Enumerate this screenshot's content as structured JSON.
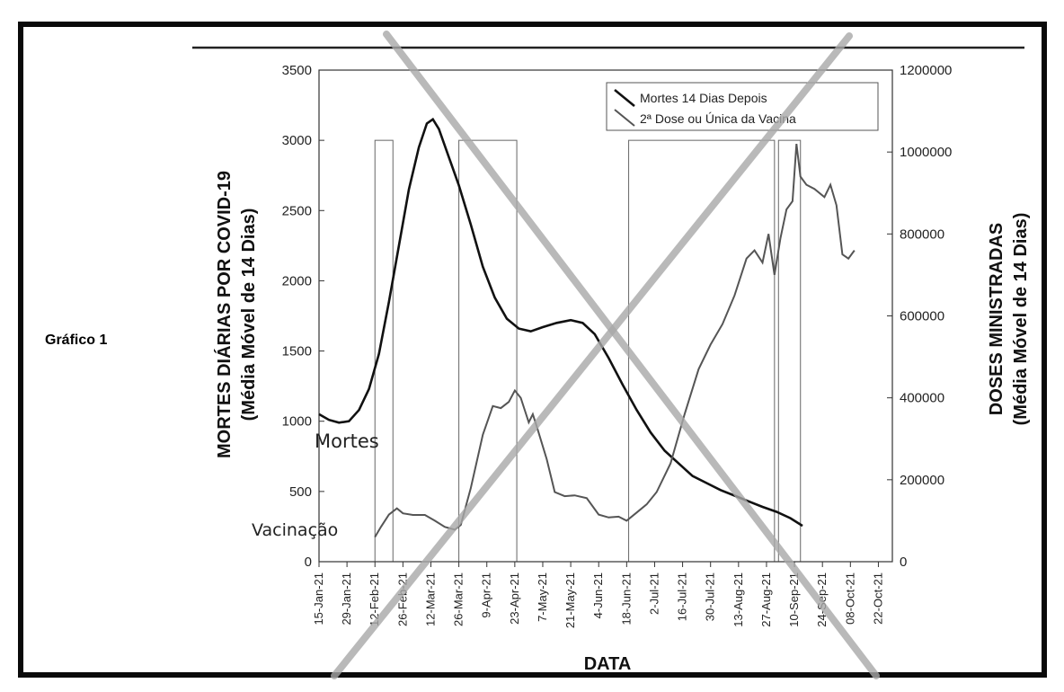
{
  "figure_label": "Gráfico 1",
  "colors": {
    "deaths_line": "#111111",
    "vaccine_line": "#555555",
    "cross": "#a8a8a8",
    "frame": "#0a0a0a"
  },
  "chart_data": {
    "type": "line",
    "title": "",
    "xlabel": "DATA",
    "ylabel": "MORTES DIÁRIAS POR COVID-19",
    "ylabel_sub": "(Média Móvel de 14 Dias)",
    "y2label": "DOSES MINISTRADAS",
    "y2label_sub": "(Média Móvel de 14 Dias)",
    "ylim": [
      0,
      3500
    ],
    "y2lim": [
      0,
      1200000
    ],
    "xlim": [
      "2021-01-15",
      "2021-10-29"
    ],
    "y_ticks": [
      "0",
      "500",
      "1000",
      "1500",
      "2000",
      "2500",
      "3000",
      "3500"
    ],
    "y2_ticks": [
      "0",
      "200000",
      "400000",
      "600000",
      "800000",
      "1000000",
      "1200000"
    ],
    "x_ticks": [
      {
        "label": "15-Jan-21",
        "date": "2021-01-15"
      },
      {
        "label": "29-Jan-21",
        "date": "2021-01-29"
      },
      {
        "label": "12-Feb-21",
        "date": "2021-02-12"
      },
      {
        "label": "26-Feb-21",
        "date": "2021-02-26"
      },
      {
        "label": "12-Mar-21",
        "date": "2021-03-12"
      },
      {
        "label": "26-Mar-21",
        "date": "2021-03-26"
      },
      {
        "label": "9-Apr-21",
        "date": "2021-04-09"
      },
      {
        "label": "23-Apr-21",
        "date": "2021-04-23"
      },
      {
        "label": "7-May-21",
        "date": "2021-05-07"
      },
      {
        "label": "21-May-21",
        "date": "2021-05-21"
      },
      {
        "label": "4-Jun-21",
        "date": "2021-06-04"
      },
      {
        "label": "18-Jun-21",
        "date": "2021-06-18"
      },
      {
        "label": "2-Jul-21",
        "date": "2021-07-02"
      },
      {
        "label": "16-Jul-21",
        "date": "2021-07-16"
      },
      {
        "label": "30-Jul-21",
        "date": "2021-07-30"
      },
      {
        "label": "13-Aug-21",
        "date": "2021-08-13"
      },
      {
        "label": "27-Aug-21",
        "date": "2021-08-27"
      },
      {
        "label": "10-Sep-21",
        "date": "2021-09-10"
      },
      {
        "label": "24-Sep-21",
        "date": "2021-09-24"
      },
      {
        "label": "08-Oct-21",
        "date": "2021-10-08"
      },
      {
        "label": "22-Oct-21",
        "date": "2021-10-22"
      }
    ],
    "legend": {
      "position": "top-right",
      "entries": [
        "Mortes 14 Dias Depois",
        "2ª Dose ou Única da Vacina"
      ]
    },
    "highlight_bands": [
      {
        "start": "2021-02-12",
        "end": "2021-02-21",
        "top": 3000
      },
      {
        "start": "2021-03-26",
        "end": "2021-04-24",
        "top": 3000
      },
      {
        "start": "2021-06-19",
        "end": "2021-08-31",
        "top": 3000
      },
      {
        "start": "2021-09-02",
        "end": "2021-09-13",
        "top": 3000
      }
    ],
    "series": [
      {
        "name": "Mortes 14 Dias Depois",
        "axis": "left",
        "points": [
          [
            "2021-01-15",
            1050
          ],
          [
            "2021-01-20",
            1010
          ],
          [
            "2021-01-25",
            990
          ],
          [
            "2021-01-30",
            1000
          ],
          [
            "2021-02-04",
            1080
          ],
          [
            "2021-02-09",
            1230
          ],
          [
            "2021-02-14",
            1480
          ],
          [
            "2021-02-19",
            1850
          ],
          [
            "2021-02-24",
            2250
          ],
          [
            "2021-03-01",
            2650
          ],
          [
            "2021-03-06",
            2950
          ],
          [
            "2021-03-10",
            3120
          ],
          [
            "2021-03-13",
            3150
          ],
          [
            "2021-03-16",
            3080
          ],
          [
            "2021-03-21",
            2880
          ],
          [
            "2021-03-26",
            2680
          ],
          [
            "2021-04-01",
            2400
          ],
          [
            "2021-04-07",
            2100
          ],
          [
            "2021-04-13",
            1880
          ],
          [
            "2021-04-19",
            1730
          ],
          [
            "2021-04-25",
            1660
          ],
          [
            "2021-05-01",
            1640
          ],
          [
            "2021-05-07",
            1670
          ],
          [
            "2021-05-14",
            1700
          ],
          [
            "2021-05-21",
            1720
          ],
          [
            "2021-05-27",
            1700
          ],
          [
            "2021-06-02",
            1620
          ],
          [
            "2021-06-09",
            1450
          ],
          [
            "2021-06-16",
            1260
          ],
          [
            "2021-06-23",
            1080
          ],
          [
            "2021-06-30",
            920
          ],
          [
            "2021-07-07",
            790
          ],
          [
            "2021-07-14",
            700
          ],
          [
            "2021-07-21",
            610
          ],
          [
            "2021-07-28",
            560
          ],
          [
            "2021-08-04",
            510
          ],
          [
            "2021-08-11",
            470
          ],
          [
            "2021-08-18",
            430
          ],
          [
            "2021-08-25",
            390
          ],
          [
            "2021-09-01",
            355
          ],
          [
            "2021-09-08",
            310
          ],
          [
            "2021-09-14",
            255
          ]
        ]
      },
      {
        "name": "2ª Dose ou Única da Vacina",
        "axis": "right",
        "points": [
          [
            "2021-02-12",
            60000
          ],
          [
            "2021-02-15",
            85000
          ],
          [
            "2021-02-19",
            115000
          ],
          [
            "2021-02-23",
            130000
          ],
          [
            "2021-02-26",
            118000
          ],
          [
            "2021-03-03",
            114000
          ],
          [
            "2021-03-09",
            114000
          ],
          [
            "2021-03-14",
            100000
          ],
          [
            "2021-03-19",
            85000
          ],
          [
            "2021-03-24",
            78000
          ],
          [
            "2021-03-27",
            90000
          ],
          [
            "2021-04-01",
            180000
          ],
          [
            "2021-04-07",
            310000
          ],
          [
            "2021-04-12",
            380000
          ],
          [
            "2021-04-16",
            375000
          ],
          [
            "2021-04-20",
            390000
          ],
          [
            "2021-04-23",
            418000
          ],
          [
            "2021-04-26",
            400000
          ],
          [
            "2021-04-30",
            340000
          ],
          [
            "2021-05-02",
            360000
          ],
          [
            "2021-05-04",
            330000
          ],
          [
            "2021-05-09",
            250000
          ],
          [
            "2021-05-13",
            170000
          ],
          [
            "2021-05-18",
            160000
          ],
          [
            "2021-05-23",
            162000
          ],
          [
            "2021-05-29",
            155000
          ],
          [
            "2021-06-04",
            115000
          ],
          [
            "2021-06-09",
            108000
          ],
          [
            "2021-06-14",
            110000
          ],
          [
            "2021-06-18",
            100000
          ],
          [
            "2021-06-23",
            120000
          ],
          [
            "2021-06-28",
            140000
          ],
          [
            "2021-07-03",
            170000
          ],
          [
            "2021-07-10",
            240000
          ],
          [
            "2021-07-17",
            360000
          ],
          [
            "2021-07-24",
            470000
          ],
          [
            "2021-07-30",
            530000
          ],
          [
            "2021-08-05",
            580000
          ],
          [
            "2021-08-11",
            650000
          ],
          [
            "2021-08-17",
            740000
          ],
          [
            "2021-08-21",
            760000
          ],
          [
            "2021-08-25",
            730000
          ],
          [
            "2021-08-28",
            800000
          ],
          [
            "2021-08-31",
            700000
          ],
          [
            "2021-09-03",
            790000
          ],
          [
            "2021-09-06",
            860000
          ],
          [
            "2021-09-09",
            880000
          ],
          [
            "2021-09-11",
            1020000
          ],
          [
            "2021-09-13",
            940000
          ],
          [
            "2021-09-16",
            920000
          ],
          [
            "2021-09-20",
            910000
          ],
          [
            "2021-09-25",
            890000
          ],
          [
            "2021-09-28",
            920000
          ],
          [
            "2021-10-01",
            870000
          ],
          [
            "2021-10-04",
            750000
          ],
          [
            "2021-10-07",
            740000
          ],
          [
            "2021-10-10",
            760000
          ]
        ]
      }
    ],
    "annotations": [
      {
        "text": "Mortes",
        "near": "left of deaths line start"
      },
      {
        "text": "Vacinação",
        "near": "left of vaccine line start"
      }
    ]
  }
}
